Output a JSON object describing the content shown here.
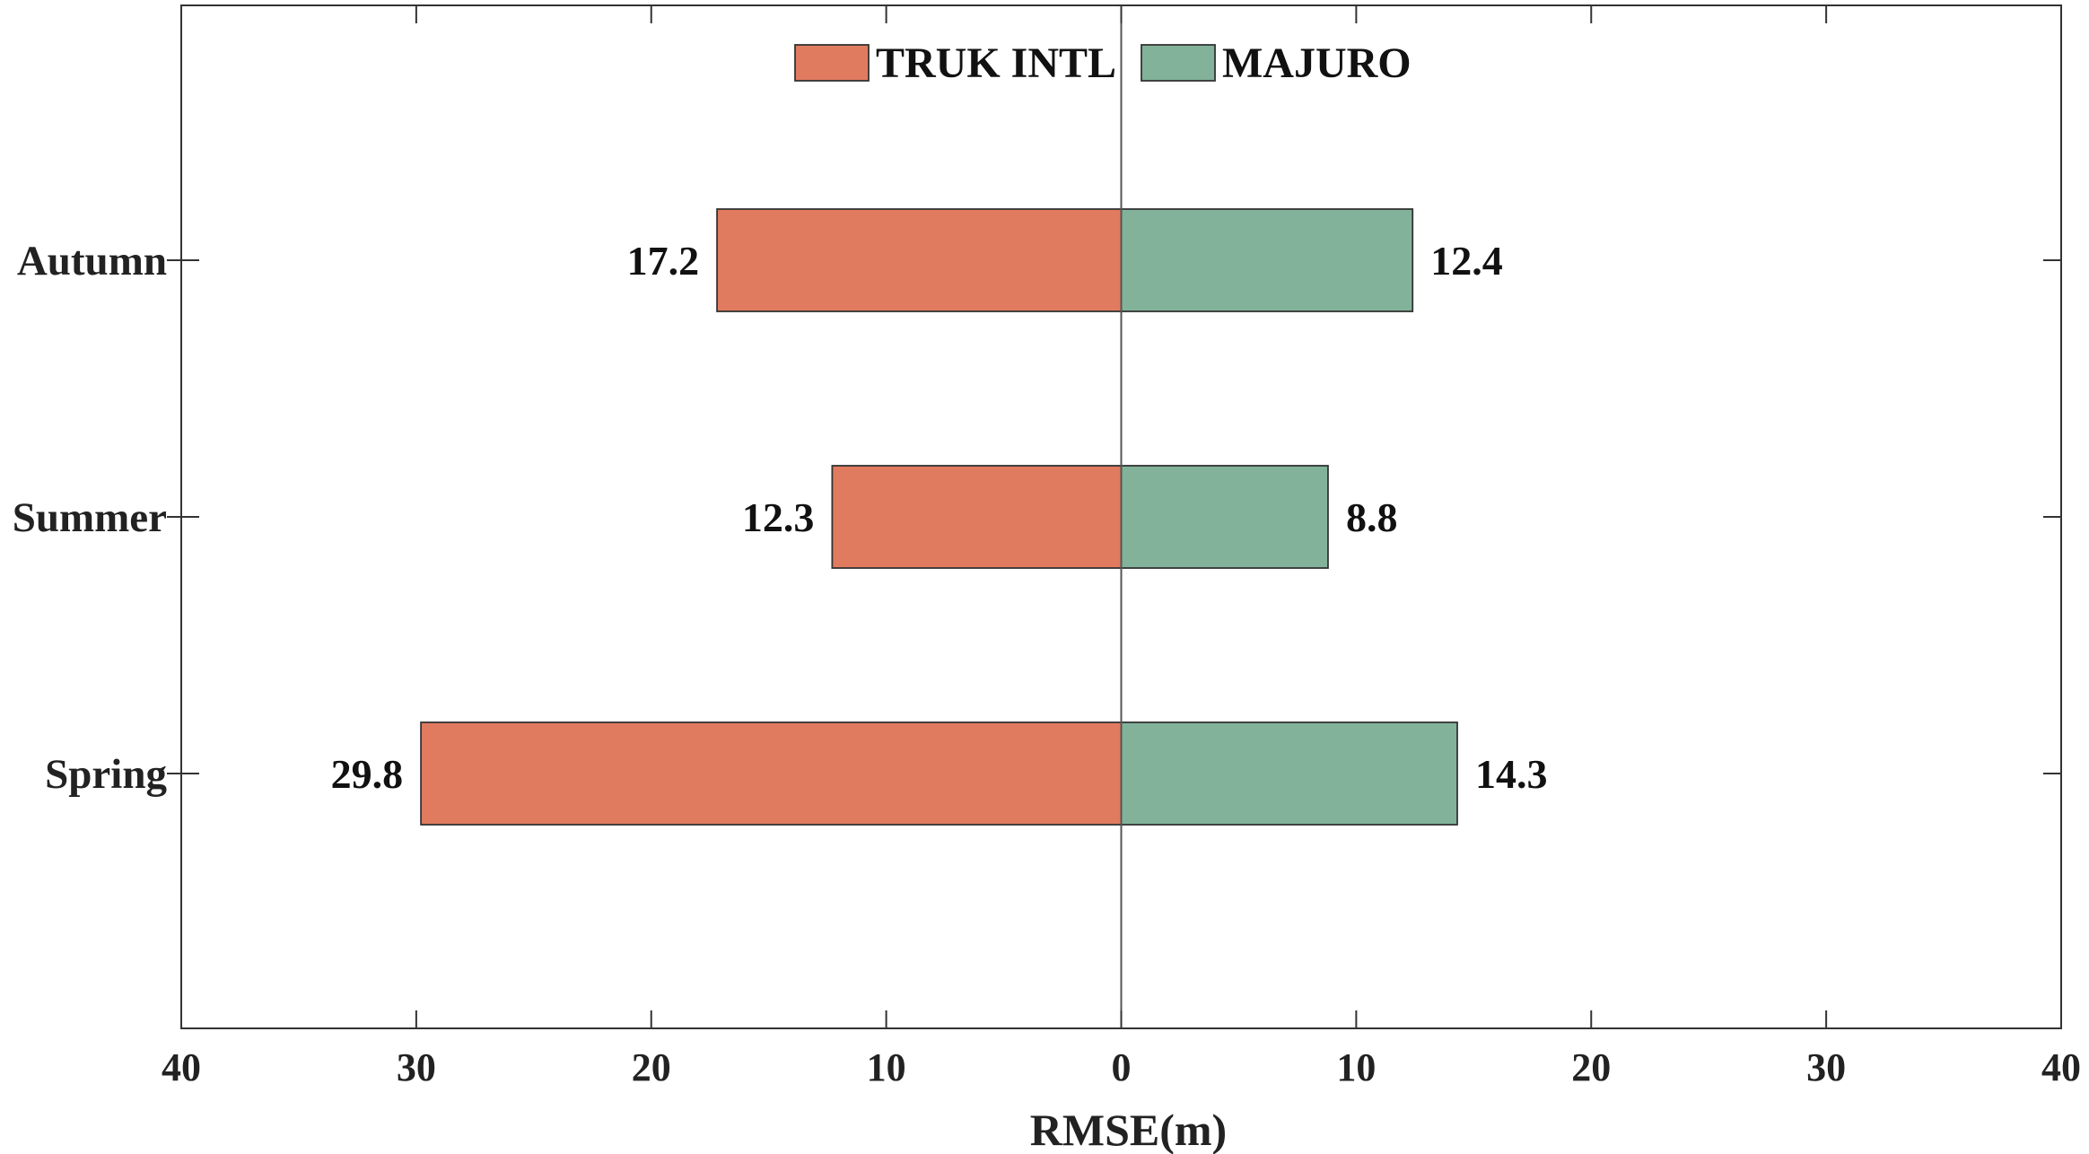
{
  "chart_data": {
    "type": "bar",
    "orientation": "horizontal-diverging",
    "categories": [
      "Autumn",
      "Summer",
      "Spring"
    ],
    "series": [
      {
        "name": "TRUK INTL",
        "side": "left",
        "color": "#E07B5F",
        "values": [
          17.2,
          12.3,
          29.8
        ],
        "labels": [
          "17.2",
          "12.3",
          "29.8"
        ]
      },
      {
        "name": "MAJURO",
        "side": "right",
        "color": "#82B39A",
        "values": [
          12.4,
          8.8,
          14.3
        ],
        "labels": [
          "12.4",
          "8.8",
          "14.3"
        ]
      }
    ],
    "xlabel": "RMSE(m)",
    "xlim": [
      -40,
      40
    ],
    "xticks": [
      -40,
      -30,
      -20,
      -10,
      0,
      10,
      20,
      30,
      40
    ],
    "xtick_labels": [
      "40",
      "30",
      "20",
      "10",
      "0",
      "10",
      "20",
      "30",
      "40"
    ],
    "legend": {
      "position": "top-center",
      "orientation": "horizontal"
    },
    "grid": false
  }
}
